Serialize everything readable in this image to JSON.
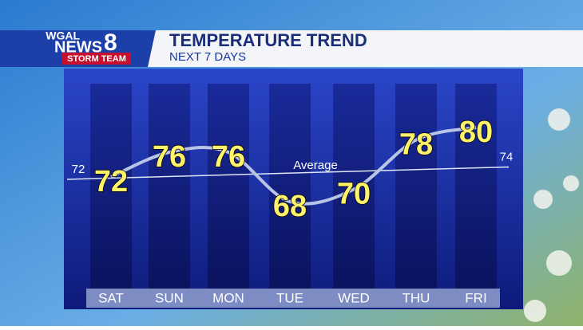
{
  "logo": {
    "station": "WGAL",
    "news": "NEWS",
    "number": "8",
    "team": "STORM TEAM"
  },
  "chart_data": {
    "type": "line",
    "title": "TEMPERATURE TREND",
    "subtitle": "NEXT 7 DAYS",
    "categories": [
      "SAT",
      "SUN",
      "MON",
      "TUE",
      "WED",
      "THU",
      "FRI"
    ],
    "values": [
      72,
      76,
      76,
      68,
      70,
      78,
      80
    ],
    "color": "#b8c4e6",
    "average": {
      "label": "Average",
      "values": [
        72,
        74
      ],
      "color": "#dfe6f7"
    }
  }
}
